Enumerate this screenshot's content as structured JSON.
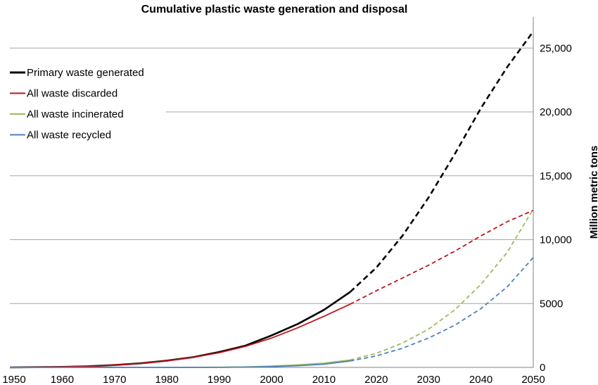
{
  "chart_data": {
    "type": "line",
    "title": "Cumulative plastic waste generation and disposal",
    "xlabel": "",
    "ylabel": "Million metric tons",
    "x_ticks": [
      "1950",
      "1960",
      "1970",
      "1980",
      "1990",
      "2000",
      "2010",
      "2020",
      "2030",
      "2040",
      "2050"
    ],
    "y_ticks": [
      "0",
      "5000",
      "10,000",
      "15,000",
      "20,000",
      "25,000"
    ],
    "xlim": [
      1950,
      2050
    ],
    "ylim": [
      0,
      27000
    ],
    "legend_position": "top-left",
    "grid": "horizontal",
    "projection_start": 2015,
    "series": [
      {
        "name": "Primary waste generated",
        "color": "#000000",
        "x": [
          1950,
          1955,
          1960,
          1965,
          1970,
          1975,
          1980,
          1985,
          1990,
          1995,
          2000,
          2005,
          2010,
          2015,
          2020,
          2025,
          2030,
          2035,
          2040,
          2045,
          2050
        ],
        "values": [
          2,
          15,
          40,
          90,
          180,
          320,
          530,
          800,
          1200,
          1700,
          2500,
          3400,
          4500,
          5900,
          7800,
          10300,
          13300,
          16700,
          20300,
          23500,
          26300
        ]
      },
      {
        "name": "All waste discarded",
        "color": "#c0141c",
        "x": [
          1950,
          1955,
          1960,
          1965,
          1970,
          1975,
          1980,
          1985,
          1990,
          1995,
          2000,
          2005,
          2010,
          2015,
          2020,
          2025,
          2030,
          2035,
          2040,
          2045,
          2050
        ],
        "values": [
          2,
          15,
          40,
          90,
          175,
          310,
          510,
          780,
          1150,
          1650,
          2300,
          3100,
          4000,
          4950,
          6000,
          7000,
          8000,
          9100,
          10300,
          11400,
          12300
        ]
      },
      {
        "name": "All waste incinerated",
        "color": "#9bbb59",
        "x": [
          1950,
          1960,
          1970,
          1980,
          1990,
          1995,
          2000,
          2005,
          2010,
          2015,
          2020,
          2025,
          2030,
          2035,
          2040,
          2045,
          2050
        ],
        "values": [
          0,
          0,
          0,
          0,
          10,
          40,
          100,
          200,
          330,
          580,
          1100,
          1900,
          3000,
          4500,
          6500,
          9000,
          12400
        ]
      },
      {
        "name": "All waste recycled",
        "color": "#4f81bd",
        "x": [
          1950,
          1960,
          1970,
          1980,
          1990,
          1995,
          2000,
          2005,
          2010,
          2015,
          2020,
          2025,
          2030,
          2035,
          2040,
          2045,
          2050
        ],
        "values": [
          0,
          0,
          0,
          0,
          5,
          20,
          60,
          130,
          250,
          500,
          900,
          1500,
          2300,
          3300,
          4600,
          6300,
          8600
        ]
      }
    ]
  }
}
